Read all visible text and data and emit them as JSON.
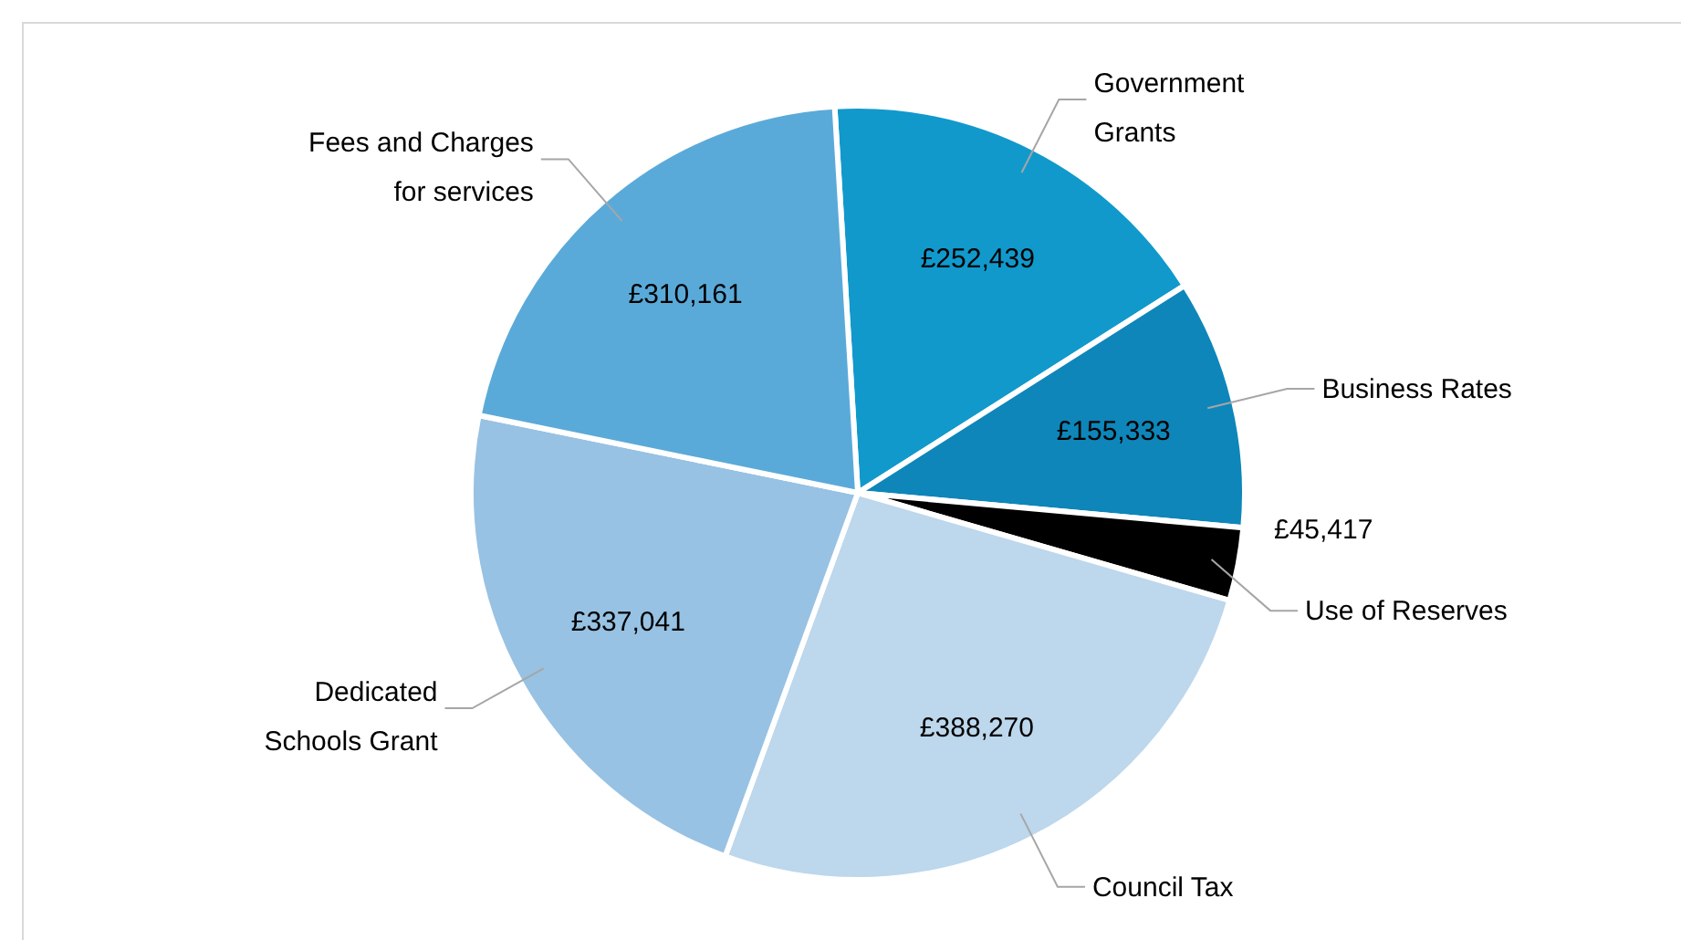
{
  "chart_data": {
    "type": "pie",
    "categories": [
      "Government Grants",
      "Business Rates",
      "Use of Reserves",
      "Council Tax",
      "Dedicated Schools Grant",
      "Fees and Charges for services"
    ],
    "values": [
      252439,
      155333,
      45417,
      388270,
      337041,
      310161
    ],
    "colors": [
      "#1199cc",
      "#0e86b9",
      "#000000",
      "#bdd7ec",
      "#97c2e3",
      "#5aaad9"
    ],
    "value_labels": [
      "£252,439",
      "£155,333",
      "£45,417",
      "£388,270",
      "£337,041",
      "£310,161"
    ]
  }
}
